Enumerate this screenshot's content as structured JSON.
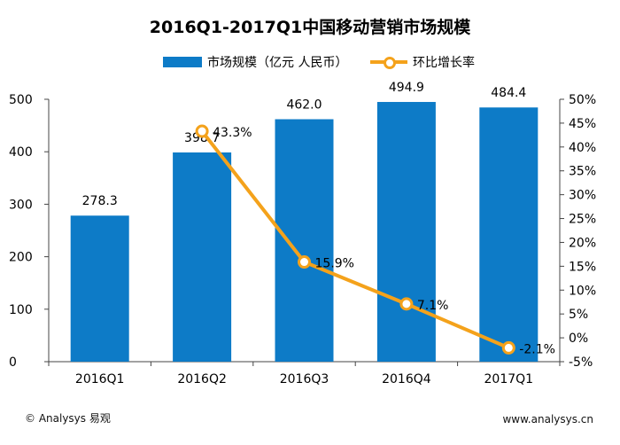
{
  "chart_data": {
    "type": "bar",
    "title": "2016Q1-2017Q1中国移动营销市场规模",
    "categories": [
      "2016Q1",
      "2016Q2",
      "2016Q3",
      "2016Q4",
      "2017Q1"
    ],
    "series": [
      {
        "name": "市场规模（亿元 人民币）",
        "type": "bar",
        "axis": "left",
        "values": [
          278.3,
          398.7,
          462.0,
          494.9,
          484.4
        ],
        "labels": [
          "278.3",
          "398.7",
          "462.0",
          "494.9",
          "484.4"
        ],
        "color": "#0d7bc7"
      },
      {
        "name": "环比增长率",
        "type": "line",
        "axis": "right",
        "values": [
          null,
          43.3,
          15.9,
          7.1,
          -2.1
        ],
        "labels": [
          "",
          "43.3%",
          "15.9%",
          "7.1%",
          "-2.1%"
        ],
        "color": "#f4a21b"
      }
    ],
    "y_left": {
      "range": [
        0,
        500
      ],
      "ticks": [
        0,
        100,
        200,
        300,
        400,
        500
      ]
    },
    "y_right": {
      "range": [
        -5,
        50
      ],
      "ticks": [
        -5,
        0,
        5,
        10,
        15,
        20,
        25,
        30,
        35,
        40,
        45,
        50
      ],
      "tick_labels": [
        "-5%",
        "0%",
        "5%",
        "10%",
        "15%",
        "20%",
        "25%",
        "30%",
        "35%",
        "40%",
        "45%",
        "50%"
      ]
    },
    "legend_position": "top",
    "grid": false
  },
  "footer": {
    "left": "© Analysys 易观",
    "right": "www.analysys.cn"
  }
}
